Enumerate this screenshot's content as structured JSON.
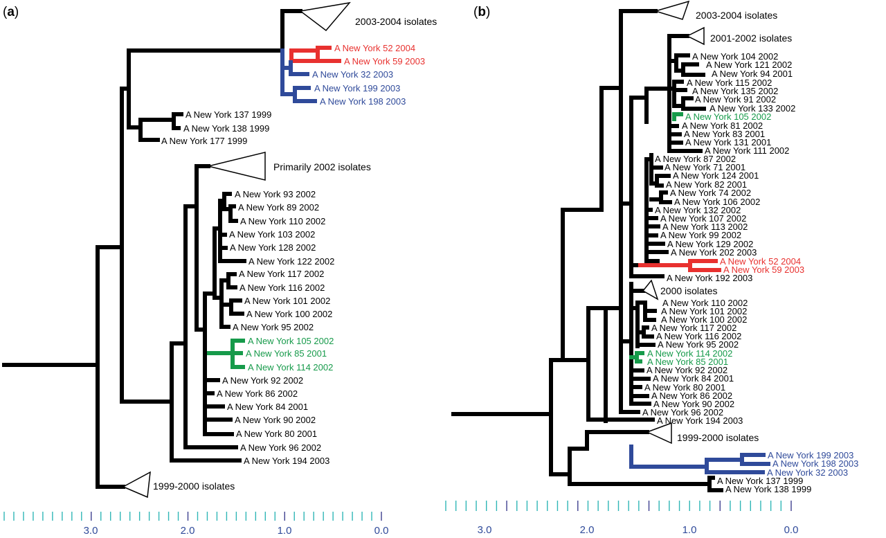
{
  "panel_a": {
    "label_letter": "a",
    "clades": {
      "c2003_2004": "2003-2004 isolates",
      "primarily_2002": "Primarily 2002 isolates",
      "c1999_2000": "1999-2000 isolates"
    },
    "leaves": [
      "A New York 52 2004",
      "A New York 59 2003",
      "A New York 32 2003",
      "A New York 199 2003",
      "A New York 198 2003",
      "A New York 137 1999",
      "A New York 138 1999",
      "A New York 177 1999",
      "A New York 93 2002",
      "A New York 89 2002",
      "A New York 110 2002",
      "A New York 103 2002",
      "A New York 128 2002",
      "A New York 122 2002",
      "A New York 117 2002",
      "A New York 116 2002",
      "A New York 101 2002",
      "A New York 100 2002",
      "A New York 95 2002",
      "A New York 105 2002",
      "A New York 85 2001",
      "A New York 114 2002",
      "A New York 92 2002",
      "A New York 86 2002",
      "A New York 84 2001",
      "A New York 90 2002",
      "A New York 80 2001",
      "A New York 96 2002",
      "A New York 194 2003"
    ],
    "axis_labels": [
      "3.0",
      "2.0",
      "1.0",
      "0.0"
    ]
  },
  "panel_b": {
    "label_letter": "b",
    "clades": {
      "c2003_2004": "2003-2004 isolates",
      "c2001_2002": "2001-2002 isolates",
      "c2000": "2000 isolates",
      "c1999_2000": "1999-2000 isolates"
    },
    "leaves": [
      "A New York 104 2002",
      "A New York 121 2002",
      "A New York 94 2001",
      "A New York 115 2002",
      "A New York 135 2002",
      "A New York 91 2002",
      "A New York 133 2002",
      "A New York 105 2002",
      "A New York 81 2002",
      "A New York 83 2001",
      "A New York 131 2001",
      "A New York 111 2002",
      "A New York 87 2002",
      "A New York 71 2001",
      "A New York 124 2001",
      "A New York 82 2001",
      "A New York 74 2002",
      "A New York 106 2002",
      "A New York 132 2002",
      "A New York 107 2002",
      "A New York 113 2002",
      "A New York 99 2002",
      "A New York 129 2002",
      "A New York 202 2003",
      "A New York 52 2004",
      "A New York 59 2003",
      "A New York 192 2003",
      "A New York 110 2002",
      "A New York 101 2002",
      "A New York 100 2002",
      "A New York 117 2002",
      "A New York 116 2002",
      "A New York 95 2002",
      "A New York 114 2002",
      "A New York 85 2001",
      "A New York 92 2002",
      "A New York 84 2001",
      "A New York 80 2001",
      "A New York 86 2002",
      "A New York 90 2002",
      "A New York 96 2002",
      "A New York 194 2003",
      "A New York 199 2003",
      "A New York 198 2003",
      "A New York 32 2003",
      "A New York 137 1999",
      "A New York 138 1999"
    ],
    "axis_labels": [
      "3.0",
      "2.0",
      "1.0",
      "0.0"
    ]
  },
  "colors": {
    "black": "#000000",
    "red": "#e8312f",
    "blue": "#2f4a9a",
    "green": "#169a4a",
    "teal_tick": "#2fb6b6",
    "navy_tick": "#3d3f8f",
    "axis_text": "#2f4a9a"
  }
}
